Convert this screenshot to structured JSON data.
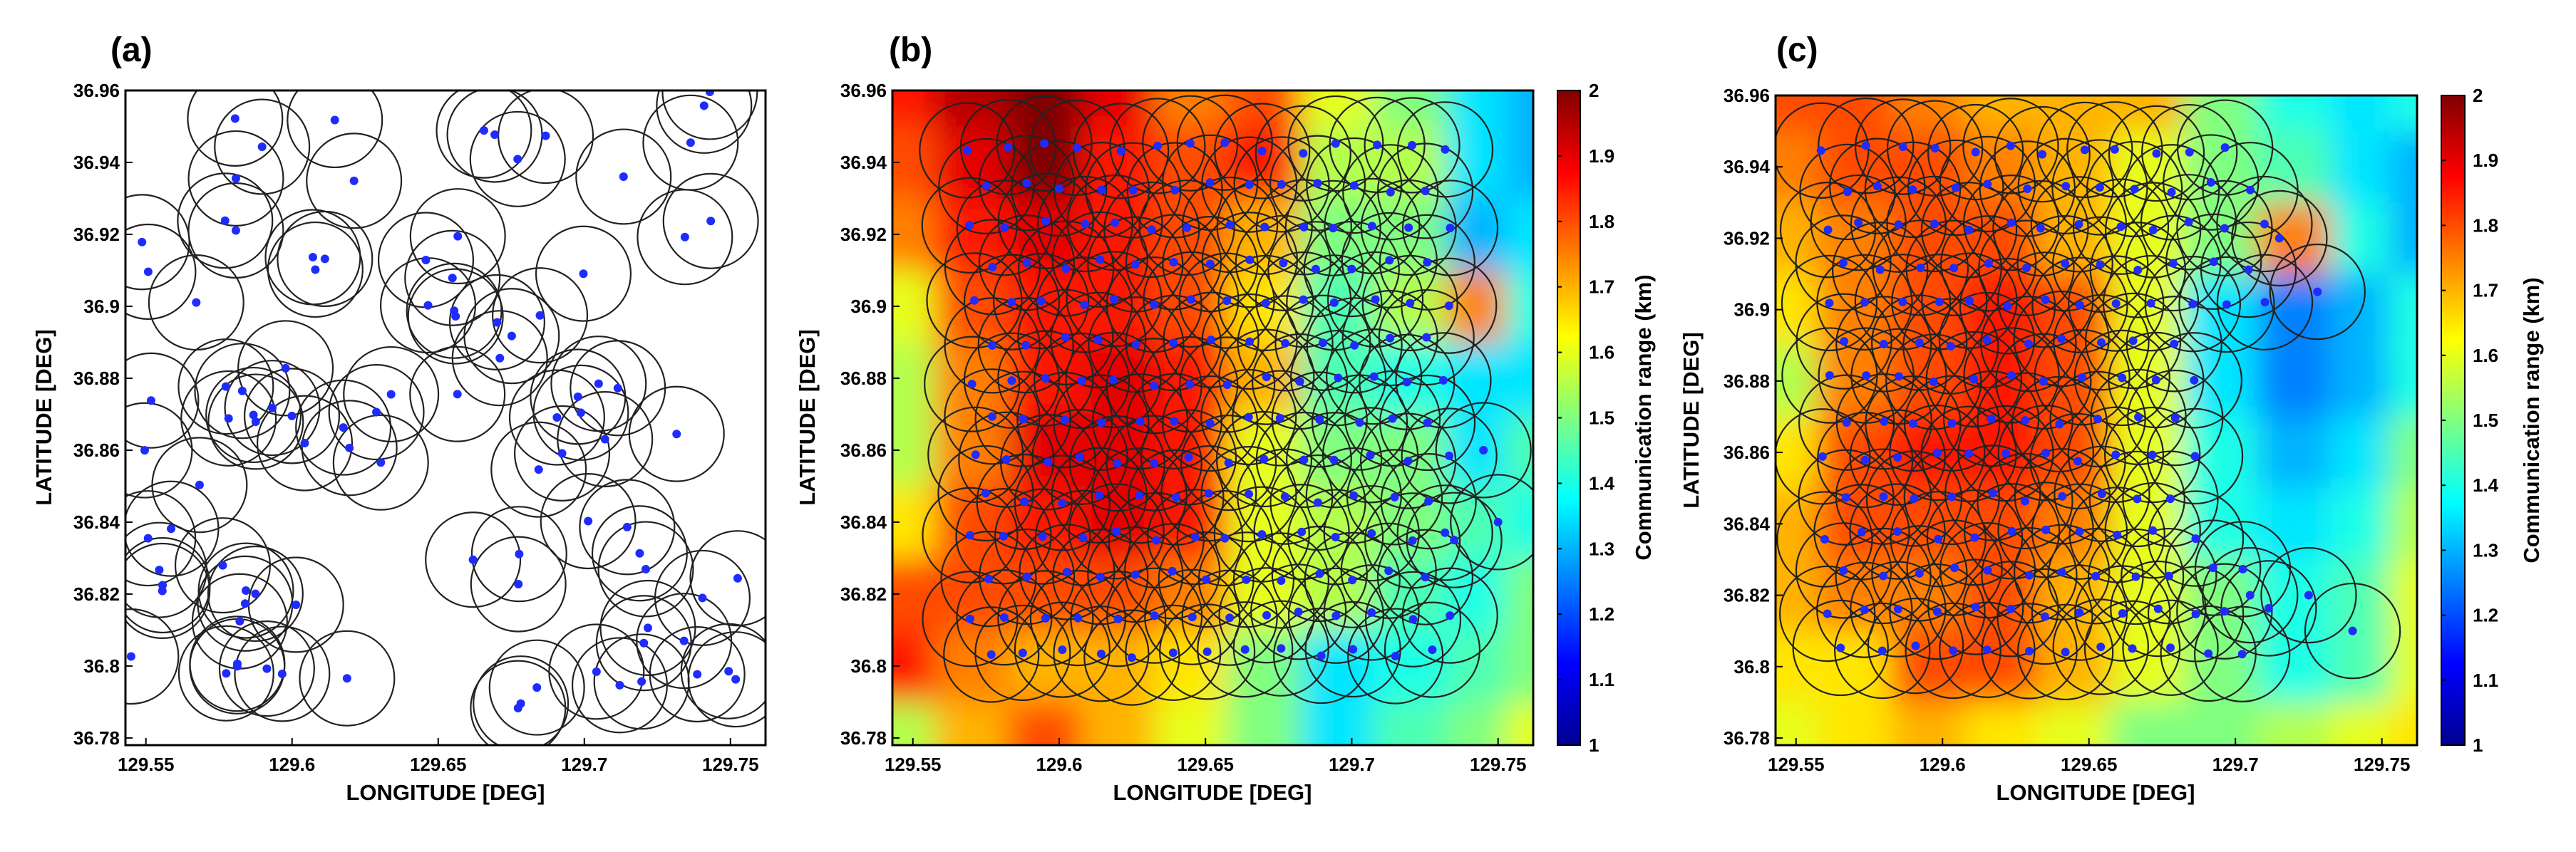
{
  "chart_data": [
    {
      "panel_label": "(a)",
      "type": "scatter",
      "xlabel": "LONGITUDE [DEG]",
      "ylabel": "LATITUDE [DEG]",
      "xlim": [
        129.543,
        129.762
      ],
      "ylim": [
        36.778,
        36.96
      ],
      "xticks": [
        129.55,
        129.6,
        129.65,
        129.7,
        129.75
      ],
      "xtick_labels": [
        "129.55",
        "129.6",
        "129.65",
        "129.7",
        "129.75"
      ],
      "yticks": [
        36.78,
        36.8,
        36.82,
        36.84,
        36.86,
        36.88,
        36.9,
        36.92,
        36.94,
        36.96
      ],
      "ytick_labels": [
        "36.78",
        "36.8",
        "36.82",
        "36.84",
        "36.86",
        "36.88",
        "36.9",
        "36.92",
        "36.94",
        "36.96"
      ],
      "ring_radius_deg": 0.0162,
      "node_color": "#1f2bff",
      "ring_color": "#222222",
      "points_pattern": "random",
      "node_count": 100
    },
    {
      "panel_label": "(b)",
      "type": "heatmap",
      "xlabel": "LONGITUDE [DEG]",
      "ylabel": "LATITUDE [DEG]",
      "xlim": [
        129.543,
        129.762
      ],
      "ylim": [
        36.778,
        36.96
      ],
      "xticks": [
        129.55,
        129.6,
        129.65,
        129.7,
        129.75
      ],
      "xtick_labels": [
        "129.55",
        "129.6",
        "129.65",
        "129.7",
        "129.75"
      ],
      "yticks": [
        36.78,
        36.8,
        36.82,
        36.84,
        36.86,
        36.88,
        36.9,
        36.92,
        36.94,
        36.96
      ],
      "ytick_labels": [
        "36.78",
        "36.8",
        "36.82",
        "36.84",
        "36.86",
        "36.88",
        "36.9",
        "36.92",
        "36.94",
        "36.96"
      ],
      "colorbar": {
        "label": "Communication range (km)",
        "range": [
          1,
          2
        ],
        "ticks": [
          "1",
          "1.1",
          "1.2",
          "1.3",
          "1.4",
          "1.5",
          "1.6",
          "1.7",
          "1.8",
          "1.9",
          "2"
        ]
      },
      "grid_x": [
        129.545,
        129.57,
        129.595,
        129.62,
        129.645,
        129.67,
        129.695,
        129.72,
        129.745,
        129.76
      ],
      "grid_y": [
        36.96,
        36.94,
        36.92,
        36.9,
        36.88,
        36.86,
        36.84,
        36.82,
        36.8,
        36.78
      ],
      "values": [
        [
          1.85,
          1.95,
          2.0,
          1.9,
          1.75,
          1.8,
          1.6,
          1.5,
          1.35,
          1.3
        ],
        [
          1.8,
          1.9,
          2.0,
          1.85,
          1.8,
          1.85,
          1.55,
          1.55,
          1.35,
          1.3
        ],
        [
          1.75,
          1.85,
          1.9,
          1.85,
          1.8,
          1.7,
          1.5,
          1.5,
          1.3,
          1.35
        ],
        [
          1.6,
          1.8,
          1.85,
          1.85,
          1.8,
          1.65,
          1.45,
          1.55,
          1.75,
          1.4
        ],
        [
          1.55,
          1.75,
          1.85,
          1.9,
          1.85,
          1.7,
          1.45,
          1.4,
          1.35,
          1.35
        ],
        [
          1.55,
          1.75,
          1.9,
          1.9,
          1.85,
          1.6,
          1.5,
          1.5,
          1.35,
          1.45
        ],
        [
          1.65,
          1.8,
          1.85,
          1.9,
          1.85,
          1.6,
          1.55,
          1.5,
          1.45,
          1.4
        ],
        [
          1.8,
          1.8,
          1.8,
          1.8,
          1.75,
          1.6,
          1.55,
          1.45,
          1.4,
          1.5
        ],
        [
          1.85,
          1.75,
          1.7,
          1.7,
          1.65,
          1.5,
          1.35,
          1.4,
          1.45,
          1.5
        ],
        [
          1.55,
          1.7,
          1.8,
          1.7,
          1.6,
          1.5,
          1.35,
          1.45,
          1.5,
          1.6
        ]
      ],
      "ring_radius_deg": 0.0162,
      "node_color": "#1f2bff",
      "ring_color": "#222222",
      "points_pattern": "hexagonal",
      "hex_lon_span": [
        129.57,
        129.735
      ],
      "hex_lat_span": [
        36.8,
        36.944
      ]
    },
    {
      "panel_label": "(c)",
      "type": "heatmap",
      "xlabel": "LONGITUDE [DEG]",
      "ylabel": "LATITUDE [DEG]",
      "xlim": [
        129.543,
        129.762
      ],
      "ylim": [
        36.778,
        36.96
      ],
      "xticks": [
        129.55,
        129.6,
        129.65,
        129.7,
        129.75
      ],
      "xtick_labels": [
        "129.55",
        "129.6",
        "129.65",
        "129.7",
        "129.75"
      ],
      "yticks": [
        36.78,
        36.8,
        36.82,
        36.84,
        36.86,
        36.88,
        36.9,
        36.92,
        36.94,
        36.96
      ],
      "ytick_labels": [
        "36.78",
        "36.8",
        "36.82",
        "36.84",
        "36.86",
        "36.88",
        "36.9",
        "36.92",
        "36.94",
        "36.96"
      ],
      "colorbar": {
        "label": "Communication range (km)",
        "range": [
          1,
          2
        ],
        "ticks": [
          "1",
          "1.1",
          "1.2",
          "1.3",
          "1.4",
          "1.5",
          "1.6",
          "1.7",
          "1.8",
          "1.9",
          "2"
        ]
      },
      "grid_x": [
        129.545,
        129.57,
        129.595,
        129.62,
        129.645,
        129.67,
        129.695,
        129.72,
        129.745,
        129.76
      ],
      "grid_y": [
        36.96,
        36.94,
        36.92,
        36.9,
        36.88,
        36.86,
        36.84,
        36.82,
        36.8,
        36.78
      ],
      "values": [
        [
          1.8,
          1.8,
          1.75,
          1.7,
          1.7,
          1.7,
          1.5,
          1.4,
          1.35,
          1.4
        ],
        [
          1.75,
          1.8,
          1.8,
          1.75,
          1.7,
          1.6,
          1.5,
          1.45,
          1.35,
          1.3
        ],
        [
          1.7,
          1.75,
          1.8,
          1.8,
          1.7,
          1.6,
          1.5,
          1.75,
          1.4,
          1.3
        ],
        [
          1.65,
          1.75,
          1.8,
          1.85,
          1.8,
          1.6,
          1.35,
          1.25,
          1.3,
          1.4
        ],
        [
          1.55,
          1.75,
          1.8,
          1.85,
          1.8,
          1.6,
          1.35,
          1.25,
          1.3,
          1.4
        ],
        [
          1.65,
          1.8,
          1.85,
          1.85,
          1.8,
          1.6,
          1.4,
          1.3,
          1.35,
          1.5
        ],
        [
          1.7,
          1.8,
          1.8,
          1.8,
          1.75,
          1.6,
          1.4,
          1.35,
          1.4,
          1.55
        ],
        [
          1.7,
          1.75,
          1.75,
          1.8,
          1.7,
          1.6,
          1.5,
          1.4,
          1.45,
          1.6
        ],
        [
          1.65,
          1.65,
          1.8,
          1.8,
          1.7,
          1.6,
          1.5,
          1.4,
          1.45,
          1.6
        ],
        [
          1.6,
          1.65,
          1.7,
          1.65,
          1.6,
          1.5,
          1.5,
          1.55,
          1.6,
          1.65
        ]
      ],
      "ring_radius_deg": 0.0162,
      "node_color": "#1f2bff",
      "ring_color": "#222222",
      "points_pattern": "hexagonal-irregular",
      "hex_lon_span": [
        129.56,
        129.71
      ],
      "hex_lat_span": [
        36.795,
        36.945
      ]
    }
  ]
}
